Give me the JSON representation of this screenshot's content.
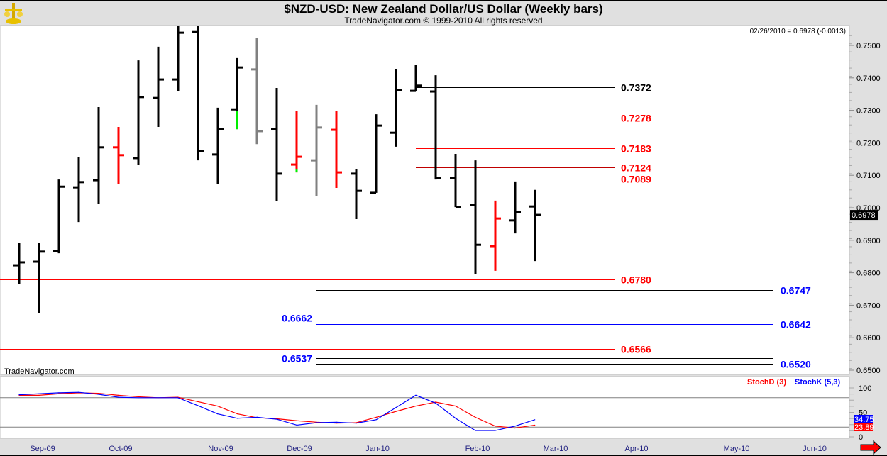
{
  "header": {
    "title": "$NZD-USD:  New Zealand Dollar/US Dollar  (Weekly bars)",
    "subtitle": "TradeNavigator.com © 1999-2010 All rights reserved",
    "last_quote": "02/26/2010 = 0.6978 (-0.0013)",
    "watermark": "TradeNavigator.com"
  },
  "colors": {
    "up": "#000000",
    "down": "#ff0000",
    "neutral": "#808080",
    "green": "#00ee00",
    "stochD": "#ff0000",
    "stochK": "#0000ff",
    "label_blue": "#0000ff",
    "label_red": "#ff0000"
  },
  "chart_data": [
    {
      "type": "ohlc",
      "title": "$NZD-USD:  New Zealand Dollar/US Dollar  (Weekly bars)",
      "ylim": [
        0.6475,
        0.7575
      ],
      "y_ticks": [
        "0.7500",
        "0.7400",
        "0.7300",
        "0.7200",
        "0.7100",
        "0.7000",
        "0.6900",
        "0.6800",
        "0.6700",
        "0.6600",
        "0.6500"
      ],
      "x_ticks": [
        "Sep-09",
        "Oct-09",
        "Nov-09",
        "Dec-09",
        "Jan-10",
        "Feb-10",
        "Mar-10",
        "Apr-10",
        "May-10",
        "Jun-10"
      ],
      "current_price_label": "0.6978",
      "bars": [
        {
          "o": 0.6823,
          "h": 0.6893,
          "l": 0.6766,
          "c": 0.6832,
          "color": "up"
        },
        {
          "o": 0.6834,
          "h": 0.6891,
          "l": 0.6675,
          "c": 0.6865,
          "color": "up"
        },
        {
          "o": 0.6867,
          "h": 0.7087,
          "l": 0.686,
          "c": 0.7065,
          "color": "up"
        },
        {
          "o": 0.7063,
          "h": 0.7155,
          "l": 0.6956,
          "c": 0.7079,
          "color": "up"
        },
        {
          "o": 0.7085,
          "h": 0.731,
          "l": 0.7011,
          "c": 0.7186,
          "color": "up"
        },
        {
          "o": 0.7186,
          "h": 0.7249,
          "l": 0.7074,
          "c": 0.7162,
          "color": "down"
        },
        {
          "o": 0.7153,
          "h": 0.7454,
          "l": 0.7133,
          "c": 0.7341,
          "color": "up"
        },
        {
          "o": 0.7338,
          "h": 0.7496,
          "l": 0.7249,
          "c": 0.7395,
          "color": "up"
        },
        {
          "o": 0.7395,
          "h": 0.7575,
          "l": 0.7358,
          "c": 0.7539,
          "color": "up"
        },
        {
          "o": 0.7541,
          "h": 0.7575,
          "l": 0.7146,
          "c": 0.7175,
          "color": "up"
        },
        {
          "o": 0.7164,
          "h": 0.7308,
          "l": 0.7074,
          "c": 0.7242,
          "color": "up"
        },
        {
          "o": 0.7303,
          "h": 0.7461,
          "l": 0.7242,
          "c": 0.7432,
          "color": "up",
          "tail": "green"
        },
        {
          "o": 0.7426,
          "h": 0.7524,
          "l": 0.7196,
          "c": 0.7236,
          "color": "neutral"
        },
        {
          "o": 0.7242,
          "h": 0.7369,
          "l": 0.702,
          "c": 0.7105,
          "color": "up"
        },
        {
          "o": 0.7133,
          "h": 0.7297,
          "l": 0.7109,
          "c": 0.7157,
          "color": "down",
          "tail": "green"
        },
        {
          "o": 0.7146,
          "h": 0.7317,
          "l": 0.7037,
          "c": 0.7247,
          "color": "neutral"
        },
        {
          "o": 0.724,
          "h": 0.7299,
          "l": 0.7061,
          "c": 0.7109,
          "color": "down"
        },
        {
          "o": 0.7105,
          "h": 0.7118,
          "l": 0.6965,
          "c": 0.7052,
          "color": "up"
        },
        {
          "o": 0.7046,
          "h": 0.7288,
          "l": 0.7046,
          "c": 0.7253,
          "color": "up"
        },
        {
          "o": 0.7231,
          "h": 0.7428,
          "l": 0.7188,
          "c": 0.7362,
          "color": "up"
        },
        {
          "o": 0.736,
          "h": 0.7441,
          "l": 0.7358,
          "c": 0.7376,
          "color": "up"
        },
        {
          "o": 0.7358,
          "h": 0.7408,
          "l": 0.7087,
          "c": 0.7092,
          "color": "up"
        },
        {
          "o": 0.7092,
          "h": 0.7166,
          "l": 0.7002,
          "c": 0.7002,
          "color": "up"
        },
        {
          "o": 0.7009,
          "h": 0.7146,
          "l": 0.6797,
          "c": 0.6886,
          "color": "up"
        },
        {
          "o": 0.6882,
          "h": 0.7022,
          "l": 0.6806,
          "c": 0.6967,
          "color": "down"
        },
        {
          "o": 0.6961,
          "h": 0.7081,
          "l": 0.6921,
          "c": 0.6987,
          "color": "up"
        },
        {
          "o": 0.7004,
          "h": 0.7055,
          "l": 0.6836,
          "c": 0.6978,
          "color": "up"
        }
      ],
      "levels": [
        {
          "value": 0.7372,
          "label": "0.7372",
          "line": "#000000",
          "text": "#000000",
          "span": "right-short",
          "label_side": "right"
        },
        {
          "value": 0.7278,
          "label": "0.7278",
          "line": "#ff0000",
          "text": "#ff0000",
          "span": "right-short",
          "label_side": "right"
        },
        {
          "value": 0.7183,
          "label": "0.7183",
          "line": "#ff0000",
          "text": "#ff0000",
          "span": "right-short",
          "label_side": "right"
        },
        {
          "value": 0.7124,
          "label": "0.7124",
          "line": "#c00000",
          "text": "#ff0000",
          "span": "right-short",
          "label_side": "right"
        },
        {
          "value": 0.7089,
          "label": "0.7089",
          "line": "#ff0000",
          "text": "#ff0000",
          "span": "right-short",
          "label_side": "right"
        },
        {
          "value": 0.678,
          "label": "0.6780",
          "line": "#ff0000",
          "text": "#ff0000",
          "span": "full-short",
          "label_side": "right"
        },
        {
          "value": 0.6747,
          "label": "0.6747",
          "line": "#000000",
          "text": "#0000ff",
          "span": "mid-long",
          "label_side": "right"
        },
        {
          "value": 0.6662,
          "label": "0.6662",
          "line": "#0000ff",
          "text": "#0000ff",
          "span": "mid-long",
          "label_side": "left"
        },
        {
          "value": 0.6642,
          "label": "0.6642",
          "line": "#0000ff",
          "text": "#0000ff",
          "span": "mid-long",
          "label_side": "right"
        },
        {
          "value": 0.6566,
          "label": "0.6566",
          "line": "#ff0000",
          "text": "#ff0000",
          "span": "full-short",
          "label_side": "right"
        },
        {
          "value": 0.6537,
          "label": "0.6537",
          "line": "#000000",
          "text": "#0000ff",
          "span": "mid-long",
          "label_side": "left"
        },
        {
          "value": 0.652,
          "label": "0.6520",
          "line": "#000000",
          "text": "#0000ff",
          "span": "mid-long",
          "label_side": "right"
        }
      ]
    },
    {
      "type": "line",
      "ylim": [
        0,
        100
      ],
      "y_ticks": [
        "100",
        "50",
        "0"
      ],
      "reference_lines": [
        80,
        20
      ],
      "series": [
        {
          "name": "StochD (3)",
          "color": "#ff0000",
          "last_label": "23.89",
          "values": [
            85,
            85,
            88,
            90,
            89,
            85,
            82,
            80,
            81,
            72,
            63,
            47,
            39,
            37,
            33,
            30,
            28,
            29,
            40,
            52,
            63,
            71,
            63,
            40,
            22,
            18,
            24
          ]
        },
        {
          "name": "StochK (5,3)",
          "color": "#0000ff",
          "last_label": "34.75",
          "values": [
            86,
            88,
            90,
            91,
            87,
            81,
            80,
            80,
            80,
            64,
            47,
            38,
            40,
            36,
            24,
            29,
            30,
            28,
            35,
            60,
            85,
            69,
            38,
            13,
            13,
            22,
            35
          ]
        }
      ]
    }
  ]
}
